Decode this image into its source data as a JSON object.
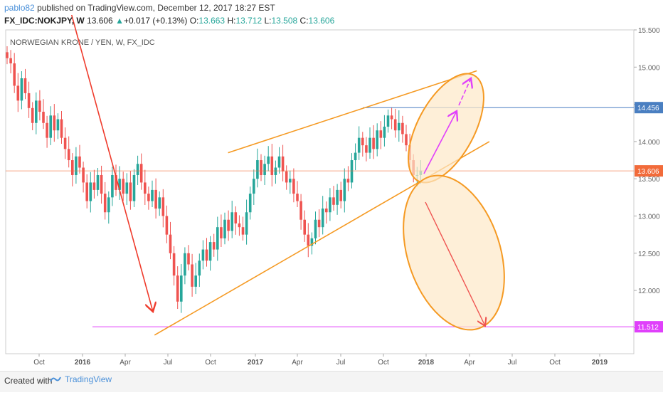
{
  "header": {
    "author": "pablo82",
    "published_text": "published on TradingView.com, December 12, 2017 18:27 EST",
    "symbol": "FX_IDC:NOKJPY, W",
    "last": "13.606",
    "change_arrow": "▲",
    "change": "+0.017 (+0.13%)",
    "o_label": "O:",
    "o_value": "13.663",
    "h_label": "H:",
    "h_value": "13.712",
    "l_label": "L:",
    "l_value": "13.508",
    "c_label": "C:",
    "c_value": "13.606"
  },
  "chart_data": {
    "type": "candlestick",
    "title": "NORWEGIAN KRONE / YEN, W, FX_IDC",
    "ylim": [
      11.15,
      15.5
    ],
    "y_ticks": [
      "15.500",
      "15.000",
      "14.500",
      "14.000",
      "13.500",
      "13.000",
      "12.500",
      "12.000",
      "11.500"
    ],
    "x_ticks": [
      "Oct",
      "2016",
      "Apr",
      "Jul",
      "Oct",
      "2017",
      "Apr",
      "Jul",
      "Oct",
      "2018",
      "Apr",
      "Jul",
      "Oct",
      "2019"
    ],
    "price_labels": [
      {
        "value": "14.456",
        "color": "#4a7fc1"
      },
      {
        "value": "13.606",
        "color": "#f26b3a"
      },
      {
        "value": "11.512",
        "color": "#e040fb"
      }
    ],
    "up_color": "#26a69a",
    "down_color": "#ef5350",
    "closes": [
      15.12,
      15.05,
      14.75,
      14.55,
      14.85,
      14.65,
      14.45,
      14.25,
      14.55,
      14.4,
      14.25,
      14.05,
      14.35,
      14.15,
      14.3,
      14.05,
      13.9,
      13.75,
      13.55,
      13.8,
      13.65,
      13.45,
      13.2,
      13.45,
      13.35,
      13.55,
      13.3,
      13.05,
      13.25,
      13.55,
      13.35,
      13.5,
      13.3,
      13.45,
      13.2,
      13.55,
      13.7,
      13.45,
      13.3,
      13.2,
      13.35,
      13.1,
      13.25,
      13.0,
      12.75,
      12.5,
      12.2,
      11.85,
      12.2,
      12.5,
      12.35,
      12.05,
      12.2,
      12.4,
      12.55,
      12.4,
      12.65,
      12.55,
      12.85,
      12.7,
      12.95,
      12.8,
      13.05,
      12.9,
      12.85,
      12.75,
      13.05,
      13.3,
      13.5,
      13.75,
      13.55,
      13.7,
      13.8,
      13.55,
      13.65,
      13.8,
      13.6,
      13.45,
      13.5,
      13.3,
      13.2,
      12.95,
      12.75,
      12.6,
      12.7,
      12.95,
      12.85,
      13.1,
      13.05,
      13.25,
      13.15,
      13.35,
      13.2,
      13.5,
      13.45,
      13.75,
      13.85,
      14.05,
      13.95,
      13.85,
      14.05,
      13.9,
      14.15,
      14.05,
      14.2,
      14.35,
      14.3,
      14.15,
      14.25,
      14.1,
      13.95,
      13.75,
      13.55,
      13.55,
      13.61
    ],
    "annotations": [
      {
        "type": "trend_line",
        "color": "#ef3b2c",
        "from": [
          0.105,
          15.7
        ],
        "to": [
          0.243,
          11.85
        ],
        "arrow": true
      },
      {
        "type": "horizontal_line",
        "color": "#e040fb",
        "value": 11.512
      },
      {
        "type": "horizontal_line",
        "color": "#4a7fc1",
        "value": 14.456
      },
      {
        "type": "horizontal_line",
        "color": "#f26b3a",
        "value": 13.606
      },
      {
        "type": "channel_line",
        "color": "#f59a23",
        "from": [
          0.237,
          11.4
        ],
        "to": [
          0.77,
          14.0
        ]
      },
      {
        "type": "channel_line",
        "color": "#f59a23",
        "from": [
          0.354,
          13.85
        ],
        "to": [
          0.75,
          14.95
        ]
      },
      {
        "type": "ellipse",
        "color": "#f59a23",
        "label": "upside-scenario"
      },
      {
        "type": "ellipse",
        "color": "#f59a23",
        "label": "downside-scenario"
      },
      {
        "type": "arrow",
        "color": "#e040fb",
        "label": "up-arrow"
      },
      {
        "type": "arrow",
        "color": "#ef5350",
        "label": "down-arrow"
      }
    ]
  },
  "footer": {
    "created_with": "Created with",
    "brand": "TradingView"
  }
}
